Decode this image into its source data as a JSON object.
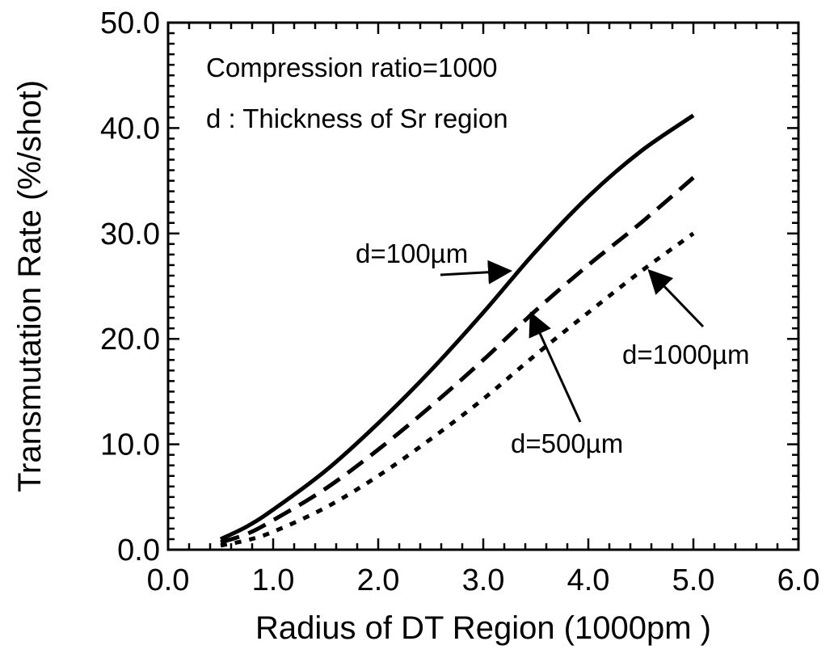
{
  "chart_data": {
    "type": "line",
    "xlabel": "Radius of DT  Region (1000pm )",
    "ylabel": "Transmutation Rate (%/shot)",
    "xlim": [
      0.0,
      6.0
    ],
    "ylim": [
      0.0,
      50.0
    ],
    "x_ticks": [
      "0.0",
      "1.0",
      "2.0",
      "3.0",
      "4.0",
      "5.0",
      "6.0"
    ],
    "y_ticks": [
      "0.0",
      "10.0",
      "20.0",
      "30.0",
      "40.0",
      "50.0"
    ],
    "annotations": [
      "Compression  ratio=1000",
      "d : Thickness of Sr region"
    ],
    "grid": false,
    "legend": "none",
    "series": [
      {
        "name": "d=100µm",
        "style": "solid",
        "x": [
          0.5,
          0.75,
          1.0,
          1.5,
          2.0,
          2.5,
          3.0,
          3.5,
          4.0,
          4.5,
          5.0
        ],
        "y": [
          1.0,
          2.2,
          3.8,
          7.5,
          12.0,
          17.0,
          22.5,
          28.3,
          33.5,
          37.8,
          41.2
        ]
      },
      {
        "name": "d=500µm",
        "style": "dashed",
        "x": [
          0.5,
          0.75,
          1.0,
          1.5,
          2.0,
          2.5,
          3.0,
          3.5,
          4.0,
          4.5,
          5.0
        ],
        "y": [
          0.7,
          1.5,
          2.8,
          5.8,
          9.5,
          13.6,
          18.0,
          22.7,
          27.0,
          31.0,
          35.3
        ]
      },
      {
        "name": "d=1000µm",
        "style": "dotted",
        "x": [
          0.5,
          0.75,
          1.0,
          1.5,
          2.0,
          2.5,
          3.0,
          3.5,
          4.0,
          4.5,
          5.0
        ],
        "y": [
          0.4,
          0.9,
          1.7,
          4.0,
          7.0,
          10.5,
          14.3,
          18.5,
          22.5,
          26.4,
          30.0
        ]
      }
    ],
    "callouts": [
      {
        "label": "d=100µm",
        "series": 0,
        "at_x": 3.3
      },
      {
        "label": "d=500µm",
        "series": 1,
        "at_x": 3.5
      },
      {
        "label": "d=1000µm",
        "series": 2,
        "at_x": 4.55
      }
    ]
  }
}
